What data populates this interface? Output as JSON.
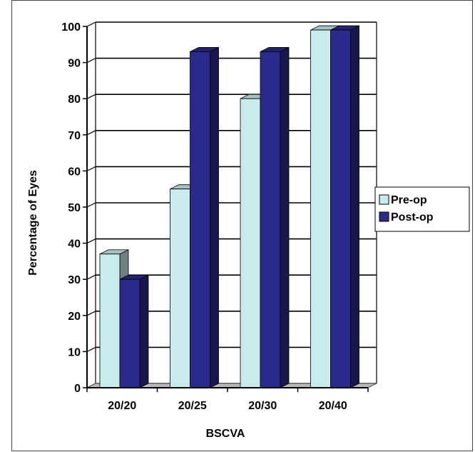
{
  "chart_data": {
    "type": "bar",
    "title": "",
    "xlabel": "BSCVA",
    "ylabel": "Percentage of Eyes",
    "categories": [
      "20/20",
      "20/25",
      "20/30",
      "20/40"
    ],
    "series": [
      {
        "name": "Pre-op",
        "values": [
          37,
          55,
          80,
          99
        ],
        "color": "#c8ecec"
      },
      {
        "name": "Post-op",
        "values": [
          30,
          93,
          93,
          99
        ],
        "color": "#2a2a8c"
      }
    ],
    "ylim": [
      0,
      100
    ],
    "yticks": [
      "0",
      "10",
      "20",
      "30",
      "40",
      "50",
      "60",
      "70",
      "80",
      "90",
      "100"
    ],
    "grid": true,
    "legend": "right",
    "style": "3d-column"
  }
}
